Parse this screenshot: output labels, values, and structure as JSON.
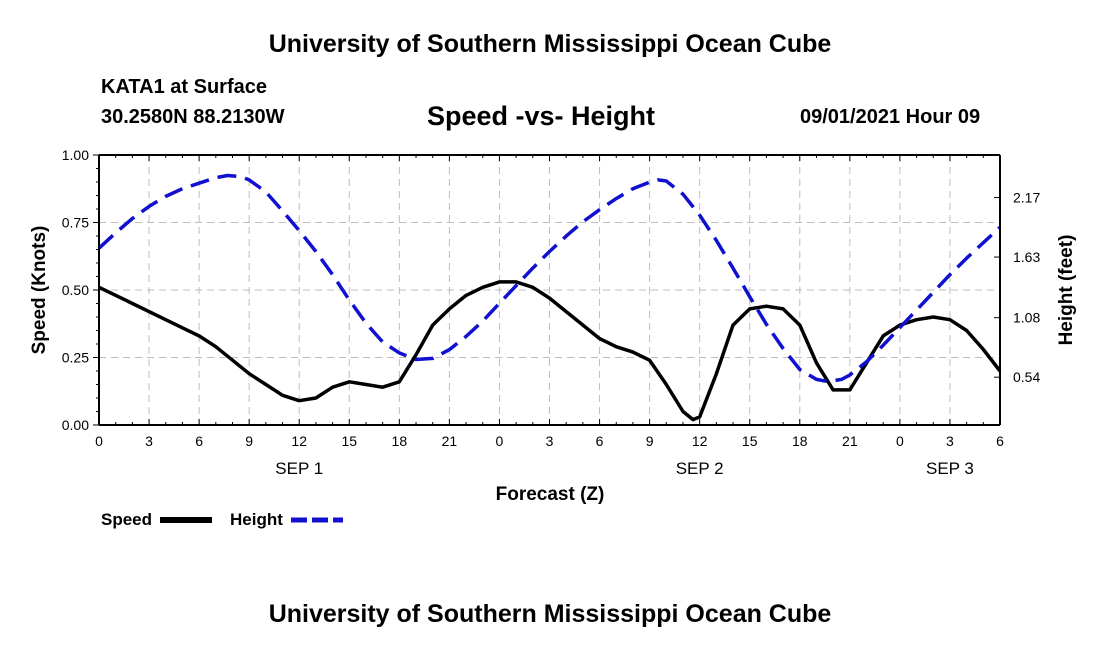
{
  "header": {
    "title": "University of Southern Mississippi Ocean Cube",
    "station": "KATA1 at Surface",
    "coords": "30.2580N  88.2130W",
    "chart_title": "Speed -vs- Height",
    "datetime": "09/01/2021 Hour 09"
  },
  "footer": {
    "title": "University of Southern Mississippi Ocean Cube"
  },
  "colors": {
    "speed": "#000000",
    "height": "#1010d0",
    "grid": "#bdbdbd"
  },
  "chart_data": {
    "type": "line",
    "title": "Speed -vs- Height",
    "xlabel": "Forecast (Z)",
    "ylabel": "Speed (Knots)",
    "y2label": "Height (feet)",
    "xlim": [
      0,
      54
    ],
    "ylim": [
      0,
      1
    ],
    "y2lim": [
      0.1061,
      2.556
    ],
    "grid": true,
    "x_ticks": [
      0,
      3,
      6,
      9,
      12,
      15,
      18,
      21,
      24,
      27,
      30,
      33,
      36,
      39,
      42,
      45,
      48,
      51,
      54
    ],
    "x_tick_labels": [
      "0",
      "3",
      "6",
      "9",
      "12",
      "15",
      "18",
      "21",
      "0",
      "3",
      "6",
      "9",
      "12",
      "15",
      "18",
      "21",
      "0",
      "3",
      "6"
    ],
    "y_ticks": [
      0,
      0.25,
      0.5,
      0.75,
      1
    ],
    "y_tick_labels": [
      "0.00",
      "0.25",
      "0.50",
      "0.75",
      "1.00"
    ],
    "y2_ticks": [
      0.54,
      1.08,
      1.63,
      2.17
    ],
    "y2_tick_labels": [
      "0.54",
      "1.08",
      "1.63",
      "2.17"
    ],
    "day_labels": [
      {
        "x": 12,
        "label": "SEP 1"
      },
      {
        "x": 36,
        "label": "SEP 2"
      },
      {
        "x": 51,
        "label": "SEP 3"
      }
    ],
    "legend": [
      {
        "name": "Speed",
        "style": "solid"
      },
      {
        "name": "Height",
        "style": "dashed"
      }
    ],
    "legend_position": "bottom-left",
    "series": [
      {
        "name": "Speed",
        "axis": "left",
        "style": "solid",
        "x": [
          0,
          2,
          4,
          6,
          7,
          8,
          9,
          10,
          11,
          12,
          13,
          14,
          15,
          16,
          17,
          18,
          19,
          20,
          21,
          22,
          23,
          24,
          25,
          26,
          27,
          28,
          29,
          30,
          31,
          32,
          33,
          34,
          35,
          35.6,
          36,
          37,
          38,
          39,
          40,
          41,
          42,
          43,
          44,
          45,
          46,
          47,
          48,
          49,
          50,
          51,
          52,
          53,
          54
        ],
        "values": [
          0.51,
          0.45,
          0.39,
          0.33,
          0.29,
          0.24,
          0.19,
          0.15,
          0.11,
          0.09,
          0.1,
          0.14,
          0.16,
          0.15,
          0.14,
          0.16,
          0.26,
          0.37,
          0.43,
          0.48,
          0.51,
          0.53,
          0.53,
          0.51,
          0.47,
          0.42,
          0.37,
          0.32,
          0.29,
          0.27,
          0.24,
          0.15,
          0.05,
          0.02,
          0.03,
          0.19,
          0.37,
          0.43,
          0.44,
          0.43,
          0.37,
          0.23,
          0.13,
          0.13,
          0.23,
          0.33,
          0.37,
          0.39,
          0.4,
          0.39,
          0.35,
          0.28,
          0.2
        ]
      },
      {
        "name": "Height",
        "axis": "right",
        "style": "dashed",
        "x": [
          0,
          1,
          2,
          3,
          4,
          5,
          6,
          7,
          7.7,
          8.5,
          9,
          10,
          11,
          12,
          13,
          14,
          15,
          16,
          17,
          18,
          19,
          20,
          21,
          22,
          23,
          24,
          25,
          26,
          27,
          28,
          29,
          30,
          31,
          32,
          33,
          33.5,
          34,
          35,
          36,
          37,
          38,
          39,
          40,
          41,
          42,
          43,
          43.7,
          44.5,
          45,
          46,
          47,
          48,
          49,
          50,
          51,
          52,
          53,
          54
        ],
        "values": [
          1.71,
          1.85,
          1.98,
          2.09,
          2.18,
          2.25,
          2.3,
          2.35,
          2.37,
          2.36,
          2.33,
          2.22,
          2.05,
          1.87,
          1.68,
          1.47,
          1.24,
          1.03,
          0.86,
          0.76,
          0.7,
          0.71,
          0.79,
          0.91,
          1.05,
          1.21,
          1.37,
          1.53,
          1.68,
          1.82,
          1.95,
          2.06,
          2.16,
          2.25,
          2.31,
          2.33,
          2.32,
          2.2,
          2.01,
          1.78,
          1.53,
          1.27,
          1.02,
          0.8,
          0.61,
          0.52,
          0.5,
          0.52,
          0.56,
          0.68,
          0.83,
          0.99,
          1.15,
          1.31,
          1.47,
          1.62,
          1.76,
          1.9
        ]
      }
    ]
  }
}
